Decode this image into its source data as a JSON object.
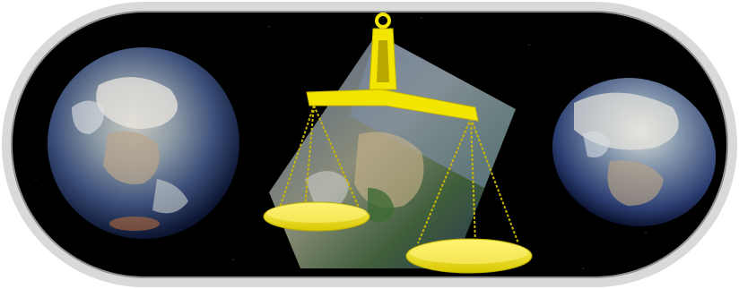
{
  "scene": {
    "background_color": "#000000",
    "frame_color": "#d9d9d9",
    "frame_inner_edge_color": "#8e8e8e",
    "objects": [
      {
        "name": "spherical-earth",
        "description_icon": "globe-icon"
      },
      {
        "name": "cube-earth",
        "description_icon": "cube-globe-icon"
      },
      {
        "name": "balance-scale",
        "description_icon": "scale-icon",
        "color": "#f2e600"
      },
      {
        "name": "ellipsoid-earth",
        "description_icon": "ellipsoid-globe-icon"
      }
    ]
  }
}
